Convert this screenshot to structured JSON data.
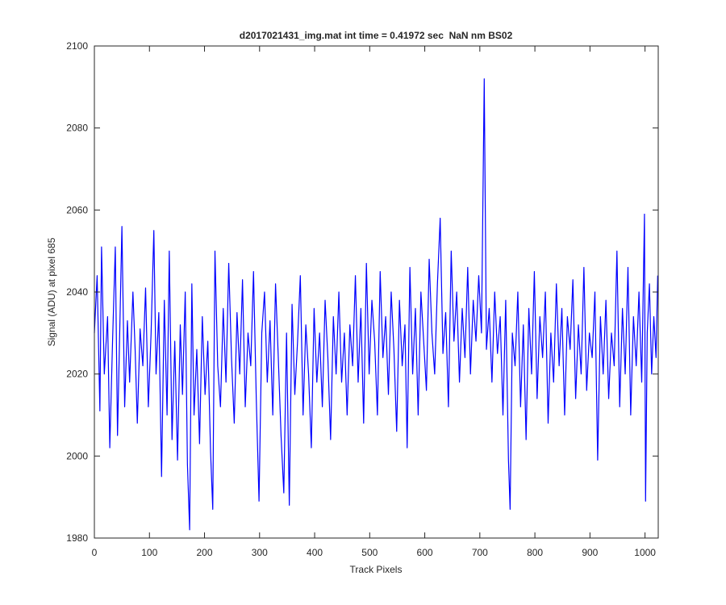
{
  "chart_data": {
    "type": "line",
    "title": "d2017021431_img.mat int time = 0.41972 sec  NaN nm BS02",
    "xlabel": "Track Pixels",
    "ylabel": "Signal (ADU) at pixel 685",
    "color": "#0000ff",
    "xlim": [
      0,
      1024
    ],
    "ylim": [
      1980,
      2100
    ],
    "xticks": [
      0,
      100,
      200,
      300,
      400,
      500,
      600,
      700,
      800,
      900,
      1000
    ],
    "yticks": [
      1980,
      2000,
      2020,
      2040,
      2060,
      2080,
      2100
    ],
    "x": [
      0,
      5,
      10,
      13,
      18,
      24,
      28,
      33,
      38,
      42,
      46,
      50,
      55,
      60,
      64,
      70,
      74,
      78,
      83,
      88,
      93,
      98,
      103,
      108,
      112,
      117,
      122,
      127,
      132,
      136,
      141,
      146,
      151,
      156,
      160,
      165,
      169,
      173,
      177,
      181,
      186,
      191,
      196,
      201,
      206,
      211,
      215,
      219,
      224,
      229,
      234,
      239,
      244,
      249,
      254,
      259,
      264,
      269,
      274,
      279,
      284,
      289,
      294,
      299,
      304,
      309,
      314,
      319,
      324,
      329,
      334,
      339,
      344,
      349,
      354,
      359,
      364,
      369,
      374,
      379,
      384,
      389,
      394,
      399,
      404,
      409,
      414,
      419,
      424,
      429,
      434,
      439,
      444,
      449,
      454,
      459,
      464,
      469,
      474,
      479,
      484,
      489,
      494,
      499,
      504,
      509,
      514,
      519,
      524,
      529,
      534,
      539,
      544,
      549,
      554,
      559,
      564,
      568,
      573,
      578,
      583,
      588,
      593,
      598,
      603,
      608,
      613,
      618,
      623,
      628,
      633,
      638,
      643,
      648,
      653,
      658,
      663,
      668,
      673,
      678,
      683,
      688,
      693,
      698,
      703,
      708,
      712,
      717,
      722,
      727,
      732,
      737,
      742,
      747,
      752,
      755,
      759,
      764,
      769,
      774,
      779,
      784,
      789,
      794,
      799,
      804,
      809,
      814,
      819,
      824,
      829,
      834,
      839,
      844,
      849,
      854,
      859,
      864,
      869,
      874,
      879,
      884,
      889,
      894,
      899,
      904,
      909,
      914,
      919,
      924,
      929,
      934,
      939,
      944,
      949,
      954,
      959,
      964,
      969,
      974,
      979,
      984,
      989,
      994,
      999,
      1001,
      1004,
      1008,
      1012,
      1016,
      1020,
      1023
    ],
    "values": [
      2030,
      2044,
      2011,
      2051,
      2020,
      2034,
      2002,
      2028,
      2051,
      2005,
      2030,
      2056,
      2012,
      2033,
      2018,
      2040,
      2026,
      2008,
      2031,
      2022,
      2041,
      2012,
      2030,
      2055,
      2020,
      2035,
      1995,
      2038,
      2010,
      2050,
      2004,
      2028,
      1999,
      2032,
      2015,
      2040,
      1998,
      1982,
      2042,
      2010,
      2026,
      2003,
      2034,
      2015,
      2028,
      2001,
      1987,
      2050,
      2022,
      2012,
      2036,
      2018,
      2047,
      2024,
      2008,
      2035,
      2020,
      2043,
      2012,
      2030,
      2022,
      2045,
      2014,
      1989,
      2030,
      2040,
      2018,
      2033,
      2010,
      2042,
      2024,
      2005,
      1991,
      2030,
      1988,
      2037,
      2015,
      2028,
      2044,
      2010,
      2032,
      2020,
      2002,
      2036,
      2018,
      2030,
      2012,
      2038,
      2024,
      2004,
      2034,
      2020,
      2040,
      2018,
      2030,
      2010,
      2032,
      2022,
      2044,
      2018,
      2036,
      2008,
      2047,
      2020,
      2038,
      2028,
      2010,
      2045,
      2024,
      2034,
      2015,
      2040,
      2026,
      2006,
      2038,
      2022,
      2032,
      2002,
      2046,
      2020,
      2036,
      2010,
      2040,
      2028,
      2016,
      2048,
      2030,
      2020,
      2042,
      2058,
      2025,
      2035,
      2012,
      2050,
      2028,
      2040,
      2018,
      2036,
      2024,
      2046,
      2020,
      2038,
      2028,
      2044,
      2030,
      2092,
      2026,
      2036,
      2018,
      2040,
      2025,
      2034,
      2010,
      2038,
      1999,
      1987,
      2030,
      2022,
      2040,
      2012,
      2032,
      2004,
      2036,
      2020,
      2045,
      2014,
      2034,
      2024,
      2040,
      2008,
      2030,
      2018,
      2042,
      2022,
      2036,
      2010,
      2034,
      2026,
      2043,
      2014,
      2032,
      2020,
      2046,
      2016,
      2030,
      2024,
      2040,
      1999,
      2034,
      2020,
      2038,
      2014,
      2030,
      2022,
      2050,
      2012,
      2036,
      2020,
      2046,
      2010,
      2034,
      2022,
      2040,
      2018,
      2059,
      1989,
      2030,
      2042,
      2020,
      2034,
      2024,
      2044
    ]
  }
}
